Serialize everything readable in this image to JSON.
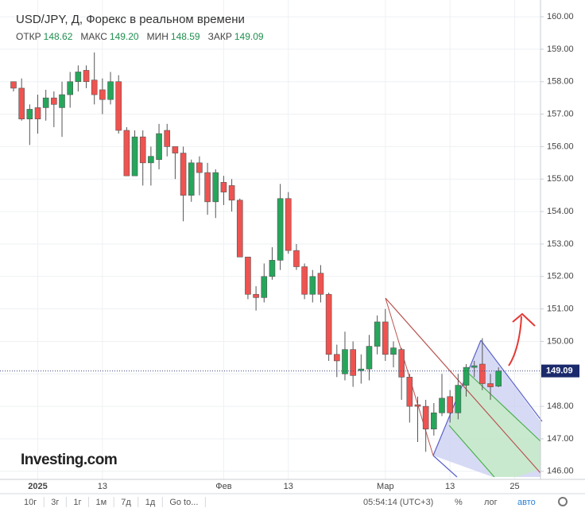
{
  "chart_data": {
    "type": "candlestick",
    "title": "USD/JPY, Д, Форекс в реальном времени",
    "stats": [
      {
        "label": "ОТКР",
        "value": "148.62"
      },
      {
        "label": "МАКС",
        "value": "149.20"
      },
      {
        "label": "МИН",
        "value": "148.59"
      },
      {
        "label": "ЗАКР",
        "value": "149.09"
      }
    ],
    "categories": [
      null,
      null,
      null,
      "2025",
      null,
      null,
      null,
      null,
      null,
      null,
      null,
      "13",
      null,
      null,
      null,
      null,
      null,
      null,
      null,
      null,
      null,
      null,
      null,
      null,
      null,
      null,
      "Фев",
      null,
      null,
      null,
      null,
      null,
      null,
      null,
      "13",
      null,
      null,
      null,
      null,
      null,
      null,
      null,
      null,
      null,
      null,
      null,
      "Мар",
      null,
      null,
      null,
      null,
      null,
      null,
      null,
      "13",
      null,
      null,
      null,
      null,
      null,
      null,
      null,
      "25"
    ],
    "open": [
      158.0,
      157.8,
      156.85,
      157.2,
      157.2,
      157.5,
      157.2,
      157.6,
      158.0,
      158.35,
      158.05,
      157.75,
      157.45,
      158.0,
      156.5,
      155.1,
      156.3,
      155.5,
      155.6,
      156.5,
      156.0,
      155.8,
      154.5,
      155.5,
      155.2,
      154.3,
      154.9,
      154.8,
      154.35,
      152.6,
      151.45,
      151.35,
      152.0,
      152.5,
      154.4,
      152.8,
      152.3,
      151.45,
      152.1,
      151.45,
      149.6,
      149.0,
      149.75,
      149.1,
      149.15,
      149.85,
      150.6,
      149.6,
      149.75,
      148.9,
      148.05,
      148.0,
      147.3,
      147.8,
      148.3,
      147.8,
      148.65,
      149.2,
      149.3,
      148.7,
      148.62,
      null,
      null
    ],
    "high": [
      158.0,
      158.1,
      157.3,
      157.6,
      157.75,
      157.7,
      158.0,
      158.3,
      158.5,
      158.5,
      158.9,
      158.1,
      158.3,
      158.2,
      156.6,
      156.5,
      156.5,
      156.0,
      156.7,
      156.7,
      156.0,
      156.0,
      155.6,
      155.7,
      155.5,
      155.3,
      155.1,
      155.0,
      154.4,
      152.6,
      151.7,
      152.4,
      152.9,
      154.85,
      154.6,
      153.0,
      152.4,
      152.2,
      152.35,
      151.5,
      149.9,
      150.3,
      150.0,
      149.6,
      150.2,
      150.8,
      151.0,
      150.0,
      149.8,
      149.0,
      148.3,
      148.2,
      148.1,
      149.0,
      148.5,
      149.0,
      149.3,
      149.4,
      150.1,
      149.0,
      149.2,
      null,
      null
    ],
    "low": [
      157.7,
      156.8,
      156.05,
      156.4,
      156.8,
      156.6,
      156.3,
      157.2,
      157.7,
      157.8,
      157.3,
      157.0,
      157.3,
      156.4,
      155.1,
      155.1,
      154.8,
      154.8,
      155.3,
      155.7,
      155.0,
      153.7,
      154.3,
      154.5,
      153.9,
      153.8,
      154.2,
      154.0,
      152.6,
      151.3,
      150.95,
      151.2,
      151.9,
      152.2,
      152.7,
      152.2,
      151.3,
      151.2,
      151.2,
      149.4,
      148.9,
      148.8,
      148.6,
      148.7,
      148.8,
      149.6,
      149.4,
      149.2,
      148.2,
      147.5,
      146.9,
      146.6,
      147.1,
      147.7,
      147.5,
      147.6,
      148.3,
      148.9,
      148.5,
      148.2,
      148.59,
      null,
      null
    ],
    "close": [
      157.8,
      156.85,
      157.15,
      156.85,
      157.5,
      157.3,
      157.6,
      158.0,
      158.3,
      158.0,
      157.6,
      157.45,
      158.0,
      156.5,
      155.1,
      156.3,
      155.5,
      155.7,
      156.4,
      156.0,
      155.8,
      154.5,
      155.5,
      155.2,
      154.3,
      155.2,
      154.6,
      154.35,
      152.6,
      151.45,
      151.35,
      152.0,
      152.5,
      154.4,
      152.8,
      152.3,
      151.45,
      152.0,
      151.45,
      149.6,
      149.4,
      149.75,
      148.95,
      149.15,
      149.85,
      150.6,
      149.6,
      149.8,
      148.9,
      148.0,
      148.0,
      147.3,
      147.8,
      148.25,
      147.8,
      148.65,
      149.2,
      149.25,
      148.7,
      148.6,
      149.09,
      null,
      null
    ],
    "up_color": "#26a65b",
    "down_color": "#ef5350",
    "ylim": [
      145.75,
      160.32
    ],
    "yticks": [
      {
        "value": 146,
        "label": "146.00"
      },
      {
        "value": 147,
        "label": "147.00"
      },
      {
        "value": 148,
        "label": "148.00"
      },
      {
        "value": 149,
        "label": "149.00"
      },
      {
        "value": 150,
        "label": "150.00"
      },
      {
        "value": 151,
        "label": "151.00"
      },
      {
        "value": 152,
        "label": "152.00"
      },
      {
        "value": 153,
        "label": "153.00"
      },
      {
        "value": 154,
        "label": "154.00"
      },
      {
        "value": 155,
        "label": "155.00"
      },
      {
        "value": 156,
        "label": "156.00"
      },
      {
        "value": 157,
        "label": "157.00"
      },
      {
        "value": 158,
        "label": "158.00"
      },
      {
        "value": 159,
        "label": "159.00"
      },
      {
        "value": 160,
        "label": "160.00"
      }
    ],
    "last_price": 149.09,
    "grid": true,
    "logo": "Investing.com",
    "toolbar": [
      "10г",
      "3г",
      "1г",
      "1м",
      "7д",
      "1д",
      "Go to..."
    ],
    "clock": "05:54:14 (UTC+3)",
    "scale_buttons": [
      "%",
      "лог",
      "авто"
    ]
  }
}
